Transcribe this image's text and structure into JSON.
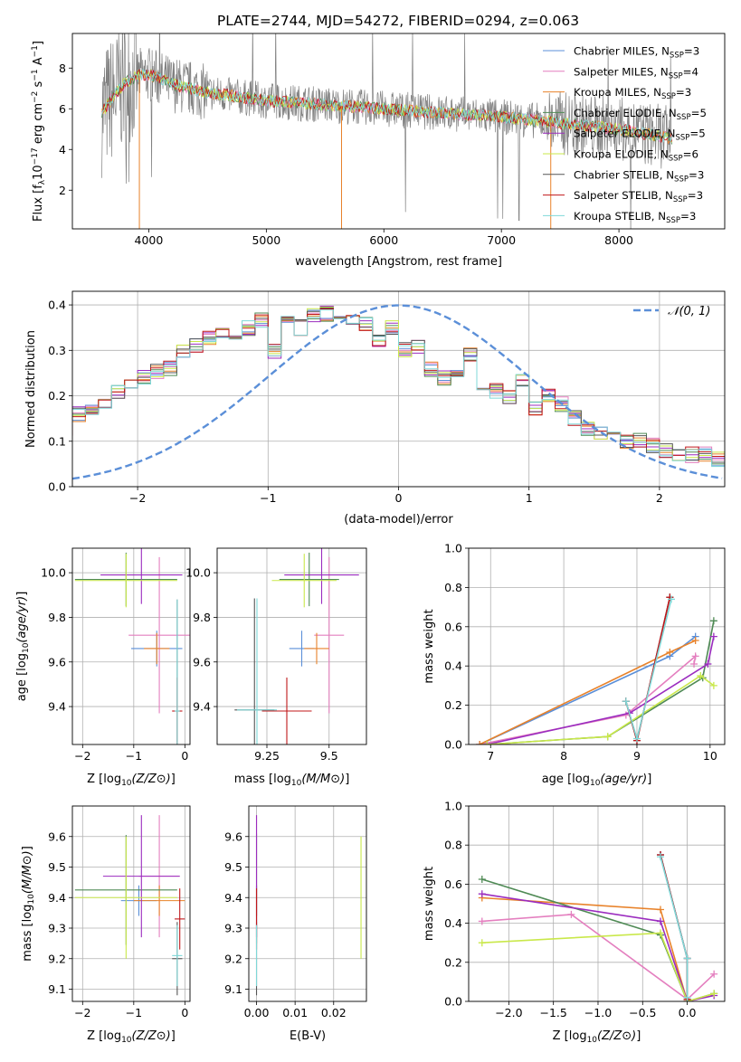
{
  "figure": {
    "title": "PLATE=2744, MJD=54272, FIBERID=0294, z=0.063"
  },
  "colors": {
    "Chabrier MILES": "#5b8fd8",
    "Salpeter MILES": "#e47fbf",
    "Kroupa MILES": "#e8822a",
    "Chabrier ELODIE": "#4f8a55",
    "Salpeter ELODIE": "#9b2cbf",
    "Kroupa ELODIE": "#c9e84a",
    "Chabrier STELIB": "#555555",
    "Salpeter STELIB": "#c0171a",
    "Kroupa STELIB": "#7fd8d8",
    "data": "#808080",
    "normal": "#5b8fd8"
  },
  "chart_data": [
    {
      "id": "spectrum",
      "type": "line",
      "title": "PLATE=2744, MJD=54272, FIBERID=0294, z=0.063",
      "xlabel": "wavelength [Angstrom, rest frame]",
      "ylabel_parts": [
        "Flux [f",
        "λ",
        "10",
        "−17",
        " erg cm",
        "−2",
        " s",
        "−1",
        " A",
        "−1",
        "]"
      ],
      "xlim": [
        3350,
        8900
      ],
      "ylim": [
        0.1,
        9.7
      ],
      "xticks": [
        4000,
        5000,
        6000,
        7000,
        8000
      ],
      "yticks": [
        2,
        4,
        6,
        8
      ],
      "continuum": {
        "x": [
          3600,
          3700,
          3800,
          3900,
          4000,
          4200,
          4500,
          5000,
          5500,
          6000,
          6500,
          7000,
          7500,
          8000,
          8500
        ],
        "y": [
          5.8,
          6.6,
          7.3,
          7.6,
          7.7,
          7.2,
          6.8,
          6.4,
          6.2,
          6.0,
          5.8,
          5.6,
          5.3,
          5.0,
          4.5
        ]
      },
      "legend": [
        {
          "name": "Chabrier MILES",
          "n": "3"
        },
        {
          "name": "Salpeter MILES",
          "n": "4"
        },
        {
          "name": "Kroupa MILES",
          "n": "3"
        },
        {
          "name": "Chabrier ELODIE",
          "n": "5"
        },
        {
          "name": "Salpeter ELODIE",
          "n": "5"
        },
        {
          "name": "Kroupa ELODIE",
          "n": "6"
        },
        {
          "name": "Chabrier STELIB",
          "n": "3"
        },
        {
          "name": "Salpeter STELIB",
          "n": "3"
        },
        {
          "name": "Kroupa STELIB",
          "n": "3"
        }
      ],
      "legend_placement": "upper right"
    },
    {
      "id": "residuals",
      "type": "histogram",
      "xlabel": "(data-model)/error",
      "ylabel": "Normed distribution",
      "xlim": [
        -2.5,
        2.5
      ],
      "ylim": [
        0,
        0.43
      ],
      "xticks": [
        -2,
        -1,
        0,
        1,
        2
      ],
      "yticks": [
        0.0,
        0.1,
        0.2,
        0.3,
        0.4
      ],
      "grid": true,
      "bin_width": 0.1,
      "base_values": [
        0.049,
        0.056,
        0.05,
        0.058,
        0.06,
        0.082,
        0.09,
        0.1,
        0.11,
        0.12,
        0.13,
        0.16,
        0.17,
        0.19,
        0.21,
        0.22,
        0.24,
        0.255,
        0.26,
        0.3,
        0.31,
        0.33,
        0.34,
        0.32,
        0.35,
        0.365,
        0.3,
        0.37,
        0.35,
        0.38,
        0.38,
        0.37,
        0.37,
        0.36,
        0.32,
        0.35,
        0.3,
        0.31,
        0.26,
        0.24,
        0.25,
        0.29,
        0.22,
        0.21,
        0.2,
        0.23,
        0.17,
        0.2,
        0.18,
        0.15,
        0.13,
        0.12,
        0.12,
        0.1,
        0.1,
        0.09,
        0.08,
        0.07,
        0.07,
        0.07,
        0.062,
        0.072,
        0.04,
        0.04,
        0.05,
        0.08,
        0.06,
        0.05,
        0.04,
        0.04,
        0.04,
        0.03,
        0.03
      ],
      "overlay_name": "𝒩(0, 1)",
      "legend_placement": "upper right"
    },
    {
      "id": "age_vs_Z",
      "type": "errorbar",
      "xlabel": "Z [log10(Z/Z⊙)]",
      "ylabel": "age  [log10(age/yr)]",
      "xlim": [
        -2.2,
        0.1
      ],
      "ylim": [
        9.23,
        10.11
      ],
      "xticks": [
        -2,
        -1,
        0
      ],
      "yticks": [
        9.4,
        9.6,
        9.8,
        10.0
      ],
      "grid": true,
      "points": [
        {
          "s": "Chabrier MILES",
          "x": -0.55,
          "xe": 0.5,
          "y": 9.66,
          "ye": 0.08
        },
        {
          "s": "Salpeter MILES",
          "x": -0.5,
          "xe": 0.6,
          "y": 9.72,
          "ye": 0.35
        },
        {
          "s": "Kroupa MILES",
          "x": -0.55,
          "xe": 0.25,
          "y": 9.66,
          "ye": 0.07
        },
        {
          "s": "Chabrier ELODIE",
          "x": -1.15,
          "xe": 1.0,
          "y": 9.97,
          "ye": 0.12
        },
        {
          "s": "Salpeter ELODIE",
          "x": -0.85,
          "xe": 0.8,
          "y": 9.99,
          "ye": 0.13
        },
        {
          "s": "Kroupa ELODIE",
          "x": -1.15,
          "xe": 1.0,
          "y": 9.965,
          "ye": 0.12
        },
        {
          "s": "Chabrier STELIB",
          "x": -0.15,
          "xe": 0.05,
          "y": 9.38,
          "ye": 0.5
        },
        {
          "s": "Salpeter STELIB",
          "x": -0.15,
          "xe": 0.1,
          "y": 9.38,
          "ye": 0.15
        },
        {
          "s": "Kroupa STELIB",
          "x": -0.15,
          "xe": 0.05,
          "y": 9.38,
          "ye": 0.5
        }
      ]
    },
    {
      "id": "age_vs_mass",
      "type": "errorbar",
      "xlabel": "mass [log10(M/M⊙)]",
      "ylabel": "",
      "xlim": [
        9.05,
        9.65
      ],
      "ylim": [
        9.23,
        10.11
      ],
      "xticks": [
        9.25,
        9.5
      ],
      "yticks": [
        9.4,
        9.6,
        9.8,
        10.0
      ],
      "grid": true,
      "points": [
        {
          "s": "Chabrier MILES",
          "x": 9.39,
          "xe": 0.05,
          "y": 9.66,
          "ye": 0.08
        },
        {
          "s": "Salpeter MILES",
          "x": 9.5,
          "xe": 0.06,
          "y": 9.72,
          "ye": 0.35
        },
        {
          "s": "Kroupa MILES",
          "x": 9.45,
          "xe": 0.05,
          "y": 9.66,
          "ye": 0.07
        },
        {
          "s": "Chabrier ELODIE",
          "x": 9.42,
          "xe": 0.12,
          "y": 9.97,
          "ye": 0.12
        },
        {
          "s": "Salpeter ELODIE",
          "x": 9.47,
          "xe": 0.15,
          "y": 9.99,
          "ye": 0.13
        },
        {
          "s": "Kroupa ELODIE",
          "x": 9.4,
          "xe": 0.13,
          "y": 9.965,
          "ye": 0.12
        },
        {
          "s": "Chabrier STELIB",
          "x": 9.2,
          "xe": 0.08,
          "y": 9.385,
          "ye": 0.5
        },
        {
          "s": "Salpeter STELIB",
          "x": 9.33,
          "xe": 0.1,
          "y": 9.38,
          "ye": 0.15
        },
        {
          "s": "Kroupa STELIB",
          "x": 9.21,
          "xe": 0.08,
          "y": 9.385,
          "ye": 0.5
        }
      ]
    },
    {
      "id": "mw_vs_age",
      "type": "line",
      "xlabel": "age  [log10(age/yr)]",
      "ylabel": "mass weight",
      "xlim": [
        6.7,
        10.2
      ],
      "ylim": [
        0,
        1
      ],
      "xticks": [
        7,
        8,
        9,
        10
      ],
      "yticks": [
        0.0,
        0.2,
        0.4,
        0.6,
        0.8,
        1.0
      ],
      "grid": true,
      "series": [
        {
          "s": "Chabrier MILES",
          "x": [
            6.85,
            9.45,
            9.8
          ],
          "y": [
            0.0,
            0.45,
            0.55
          ]
        },
        {
          "s": "Salpeter MILES",
          "x": [
            6.85,
            8.85,
            9.8,
            9.78
          ],
          "y": [
            0.0,
            0.15,
            0.45,
            0.41
          ]
        },
        {
          "s": "Kroupa MILES",
          "x": [
            6.85,
            9.45,
            9.8
          ],
          "y": [
            0.0,
            0.47,
            0.53
          ]
        },
        {
          "s": "Chabrier ELODIE",
          "x": [
            6.95,
            8.6,
            9.9,
            10.05
          ],
          "y": [
            0.0,
            0.04,
            0.34,
            0.63
          ]
        },
        {
          "s": "Salpeter ELODIE",
          "x": [
            6.95,
            8.9,
            9.97,
            10.05
          ],
          "y": [
            0.0,
            0.16,
            0.41,
            0.55
          ]
        },
        {
          "s": "Kroupa ELODIE",
          "x": [
            6.95,
            8.6,
            9.87,
            10.05
          ],
          "y": [
            0.0,
            0.04,
            0.35,
            0.3
          ]
        },
        {
          "s": "Chabrier STELIB",
          "x": [
            8.85,
            9.0,
            9.45
          ],
          "y": [
            0.22,
            0.02,
            0.75
          ]
        },
        {
          "s": "Salpeter STELIB",
          "x": [
            8.85,
            9.0,
            9.45
          ],
          "y": [
            0.22,
            0.02,
            0.75
          ]
        },
        {
          "s": "Kroupa STELIB",
          "x": [
            8.85,
            9.0,
            9.47
          ],
          "y": [
            0.22,
            0.03,
            0.74
          ]
        }
      ]
    },
    {
      "id": "mass_vs_Z",
      "type": "errorbar",
      "xlabel": "Z [log10(Z/Z⊙)]",
      "ylabel": "mass [log10(M/M⊙)]",
      "xlim": [
        -2.2,
        0.1
      ],
      "ylim": [
        9.06,
        9.7
      ],
      "xticks": [
        -2,
        -1,
        0
      ],
      "yticks": [
        9.1,
        9.2,
        9.3,
        9.4,
        9.5,
        9.6
      ],
      "grid": true,
      "points": [
        {
          "s": "Chabrier MILES",
          "x": -0.9,
          "xe": 0.35,
          "y": 9.39,
          "ye": 0.05
        },
        {
          "s": "Salpeter MILES",
          "x": -0.5,
          "xe": 0.4,
          "y": 9.47,
          "ye": 0.2
        },
        {
          "s": "Kroupa MILES",
          "x": -0.5,
          "xe": 0.5,
          "y": 9.39,
          "ye": 0.05
        },
        {
          "s": "Chabrier ELODIE",
          "x": -1.15,
          "xe": 1.0,
          "y": 9.425,
          "ye": 0.18
        },
        {
          "s": "Salpeter ELODIE",
          "x": -0.85,
          "xe": 0.75,
          "y": 9.47,
          "ye": 0.2
        },
        {
          "s": "Kroupa ELODIE",
          "x": -1.15,
          "xe": 1.0,
          "y": 9.4,
          "ye": 0.2
        },
        {
          "s": "Chabrier STELIB",
          "x": -0.15,
          "xe": 0.1,
          "y": 9.2,
          "ye": 0.12
        },
        {
          "s": "Salpeter STELIB",
          "x": -0.1,
          "xe": 0.1,
          "y": 9.33,
          "ye": 0.1
        },
        {
          "s": "Kroupa STELIB",
          "x": -0.15,
          "xe": 0.1,
          "y": 9.21,
          "ye": 0.1
        }
      ]
    },
    {
      "id": "mass_vs_ebv",
      "type": "errorbar",
      "xlabel": "E(B-V)",
      "ylabel": "",
      "xlim": [
        -0.002,
        0.0285
      ],
      "ylim": [
        9.06,
        9.7
      ],
      "xticks": [
        0.0,
        0.01,
        0.02
      ],
      "xticklabels": [
        "0.00",
        "0.01",
        "0.02"
      ],
      "yticks": [
        9.1,
        9.2,
        9.3,
        9.4,
        9.5,
        9.6
      ],
      "grid": true,
      "points": [
        {
          "s": "Chabrier MILES",
          "x": 0.0,
          "xe": 0,
          "y": 9.39,
          "ye": 0.05
        },
        {
          "s": "Salpeter MILES",
          "x": 0.0,
          "xe": 0,
          "y": 9.47,
          "ye": 0.2
        },
        {
          "s": "Kroupa MILES",
          "x": 0.0,
          "xe": 0,
          "y": 9.39,
          "ye": 0.05
        },
        {
          "s": "Chabrier ELODIE",
          "x": 0.0,
          "xe": 0,
          "y": 9.43,
          "ye": 0.18
        },
        {
          "s": "Salpeter ELODIE",
          "x": 0.0,
          "xe": 0,
          "y": 9.47,
          "ye": 0.2
        },
        {
          "s": "Kroupa ELODIE",
          "x": 0.0271,
          "xe": 0,
          "y": 9.4,
          "ye": 0.2
        },
        {
          "s": "Chabrier STELIB",
          "x": 0.0,
          "xe": 0,
          "y": 9.2,
          "ye": 0.12
        },
        {
          "s": "Salpeter STELIB",
          "x": 0.0,
          "xe": 0,
          "y": 9.33,
          "ye": 0.1
        },
        {
          "s": "Kroupa STELIB",
          "x": 0.0,
          "xe": 0,
          "y": 9.21,
          "ye": 0.1
        }
      ]
    },
    {
      "id": "mw_vs_Z",
      "type": "line",
      "xlabel": "Z [log10(Z/Z⊙)]",
      "ylabel": "mass weight",
      "xlim": [
        -2.45,
        0.42
      ],
      "ylim": [
        0,
        1
      ],
      "xticks": [
        -2.0,
        -1.5,
        -1.0,
        -0.5,
        0.0
      ],
      "xticklabels": [
        "−2.0",
        "−1.5",
        "−1.0",
        "−0.5",
        "0.0"
      ],
      "yticks": [
        0.0,
        0.2,
        0.4,
        0.6,
        0.8,
        1.0
      ],
      "grid": true,
      "series": [
        {
          "s": "Chabrier MILES",
          "x": [
            -0.3,
            0.0,
            0.0
          ],
          "y": [
            0.75,
            0.22,
            0.01
          ]
        },
        {
          "s": "Salpeter MILES",
          "x": [
            -2.3,
            -1.3,
            0.0,
            0.3
          ],
          "y": [
            0.41,
            0.445,
            0.01,
            0.14
          ]
        },
        {
          "s": "Kroupa MILES",
          "x": [
            -2.3,
            -0.3,
            0.0
          ],
          "y": [
            0.53,
            0.47,
            0.0
          ]
        },
        {
          "s": "Chabrier ELODIE",
          "x": [
            -2.3,
            -0.3,
            0.0,
            0.3
          ],
          "y": [
            0.625,
            0.34,
            0.0,
            0.04
          ]
        },
        {
          "s": "Salpeter ELODIE",
          "x": [
            -2.3,
            -0.3,
            0.0,
            0.3
          ],
          "y": [
            0.55,
            0.41,
            0.0,
            0.03
          ]
        },
        {
          "s": "Kroupa ELODIE",
          "x": [
            -2.3,
            -0.3,
            0.0,
            0.3
          ],
          "y": [
            0.3,
            0.35,
            0.0,
            0.04
          ]
        },
        {
          "s": "Chabrier STELIB",
          "x": [
            -0.3,
            0.0,
            0.0
          ],
          "y": [
            0.75,
            0.22,
            0.01
          ]
        },
        {
          "s": "Salpeter STELIB",
          "x": [
            -0.3,
            0.0,
            0.0
          ],
          "y": [
            0.75,
            0.22,
            0.01
          ]
        },
        {
          "s": "Kroupa STELIB",
          "x": [
            -0.3,
            0.0,
            0.0
          ],
          "y": [
            0.74,
            0.22,
            0.02
          ]
        }
      ]
    }
  ]
}
